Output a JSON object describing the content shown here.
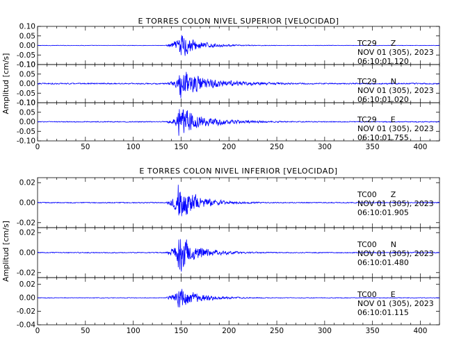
{
  "chart_data": [
    {
      "type": "line",
      "title": "E TORRES COLON NIVEL SUPERIOR [VELOCIDAD]",
      "ylabel": "Amplitud [cm/s]",
      "xlabel": "",
      "xlim": [
        0,
        420
      ],
      "x_ticks": [
        "0",
        "50",
        "100",
        "150",
        "200",
        "250",
        "300",
        "350",
        "400"
      ],
      "line_color": "#0000ff",
      "panels": [
        {
          "station": "TC29",
          "component": "Z",
          "date": "NOV 01 (305), 2023",
          "time": "06:10:01.120",
          "ylim": [
            -0.1,
            0.1
          ],
          "y_ticks": [
            "0.10",
            "0.05",
            "0.00",
            "-0.05",
            "-0.10"
          ],
          "signal": {
            "onset": 132,
            "peak_time": 148,
            "peak_amp": 0.095,
            "noise": 0.0015,
            "decay": 14,
            "tail_amp": 0.01,
            "tail_decay": 55
          }
        },
        {
          "station": "TC29",
          "component": "N",
          "date": "NOV 01 (305), 2023",
          "time": "06:10:01.020",
          "ylim": [
            -0.1,
            0.1
          ],
          "y_ticks": [
            "0.10",
            "0.05",
            "0.00",
            "-0.05",
            "-0.10"
          ],
          "signal": {
            "onset": 132,
            "peak_time": 148,
            "peak_amp": 0.085,
            "noise": 0.004,
            "decay": 22,
            "tail_amp": 0.022,
            "tail_decay": 80
          }
        },
        {
          "station": "TC29",
          "component": "E",
          "date": "NOV 01 (305), 2023",
          "time": "06:10:01.755",
          "ylim": [
            -0.1,
            0.1
          ],
          "y_ticks": [
            "0.10",
            "0.05",
            "0.00",
            "-0.05",
            "-0.10"
          ],
          "signal": {
            "onset": 132,
            "peak_time": 147,
            "peak_amp": 0.09,
            "noise": 0.003,
            "decay": 20,
            "tail_amp": 0.02,
            "tail_decay": 70
          }
        }
      ]
    },
    {
      "type": "line",
      "title": "E TORRES COLON NIVEL INFERIOR [VELOCIDAD]",
      "ylabel": "Amplitud [cm/s]",
      "xlabel": "",
      "xlim": [
        0,
        420
      ],
      "x_ticks": [
        "0",
        "50",
        "100",
        "150",
        "200",
        "250",
        "300",
        "350",
        "400"
      ],
      "line_color": "#0000ff",
      "panels": [
        {
          "station": "TC00",
          "component": "Z",
          "date": "NOV 01 (305), 2023",
          "time": "06:10:01.905",
          "ylim": [
            -0.025,
            0.025
          ],
          "y_ticks": [
            "0.02",
            "0.00",
            "-0.02"
          ],
          "signal": {
            "onset": 132,
            "peak_time": 147,
            "peak_amp": 0.024,
            "noise": 0.0006,
            "decay": 16,
            "tail_amp": 0.003,
            "tail_decay": 60
          }
        },
        {
          "station": "TC00",
          "component": "N",
          "date": "NOV 01 (305), 2023",
          "time": "06:10:01.480",
          "ylim": [
            -0.025,
            0.025
          ],
          "y_ticks": [
            "0.02",
            "0.00",
            "-0.02"
          ],
          "signal": {
            "onset": 132,
            "peak_time": 147,
            "peak_amp": 0.024,
            "noise": 0.0006,
            "decay": 16,
            "tail_amp": 0.003,
            "tail_decay": 60
          }
        },
        {
          "station": "TC00",
          "component": "E",
          "date": "NOV 01 (305), 2023",
          "time": "06:10:01.115",
          "ylim": [
            -0.04,
            0.03
          ],
          "y_ticks": [
            "0.02",
            "0.00",
            "-0.02",
            "-0.04"
          ],
          "signal": {
            "onset": 132,
            "peak_time": 147,
            "peak_amp": 0.026,
            "noise": 0.0006,
            "decay": 15,
            "tail_amp": 0.003,
            "tail_decay": 60
          }
        }
      ]
    }
  ]
}
